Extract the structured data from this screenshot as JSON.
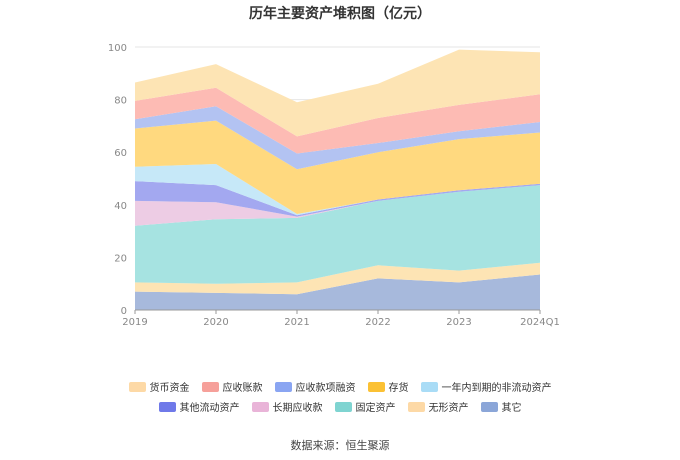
{
  "title": "历年主要资产堆积图（亿元）",
  "source": "数据来源：恒生聚源",
  "chart_data": {
    "type": "area",
    "stacked": true,
    "categories": [
      "2019",
      "2020",
      "2021",
      "2022",
      "2023",
      "2024Q1"
    ],
    "ylim": [
      0,
      100
    ],
    "yticks": [
      0,
      20,
      40,
      60,
      80,
      100
    ],
    "grid": true,
    "legend_position": "bottom",
    "series": [
      {
        "name": "其它",
        "color": "#a7b9dc",
        "values": [
          7,
          6.5,
          6,
          12,
          10.5,
          13.5
        ]
      },
      {
        "name": "无形资产",
        "color": "#fde4b4",
        "values": [
          3.5,
          3.5,
          4.5,
          5,
          4.5,
          4.5
        ]
      },
      {
        "name": "固定资产",
        "color": "#a6e3e1",
        "values": [
          21.5,
          24.5,
          24.5,
          24.5,
          30,
          29.5
        ]
      },
      {
        "name": "长期应收款",
        "color": "#edcce4",
        "values": [
          9.5,
          6.5,
          0.5,
          0,
          0,
          0
        ]
      },
      {
        "name": "其他流动资产",
        "color": "#a3a8f0",
        "values": [
          7.5,
          6.5,
          0.5,
          0.5,
          0.5,
          0.5
        ]
      },
      {
        "name": "一年内到期的非流动资产",
        "color": "#c6e8f8",
        "values": [
          5.5,
          8,
          0.5,
          0,
          0,
          0
        ]
      },
      {
        "name": "存货",
        "color": "#ffd97f",
        "values": [
          14.5,
          16.5,
          17,
          18,
          19.5,
          19.5
        ]
      },
      {
        "name": "应收款项融资",
        "color": "#b3c3f2",
        "values": [
          3.5,
          5.5,
          6,
          3.5,
          3,
          4
        ]
      },
      {
        "name": "应收账款",
        "color": "#fdbbb4",
        "values": [
          7,
          7,
          6.5,
          9.5,
          10,
          10.5
        ]
      },
      {
        "name": "货币资金",
        "color": "#fde4b4",
        "values": [
          7,
          9,
          13,
          13,
          21,
          16
        ]
      }
    ],
    "legend_rows": [
      [
        "货币资金",
        "应收账款",
        "应收款项融资",
        "存货",
        "一年内到期的非流动资产"
      ],
      [
        "其他流动资产",
        "长期应收款",
        "固定资产",
        "无形资产",
        "其它"
      ]
    ],
    "legend_colors": {
      "货币资金": "#fdd9a6",
      "应收账款": "#f6a09a",
      "应收款项融资": "#8aa5f2",
      "存货": "#fbc134",
      "一年内到期的非流动资产": "#a9dcf6",
      "其他流动资产": "#6f79e9",
      "长期应收款": "#e9b4d8",
      "固定资产": "#7fd4d1",
      "无形资产": "#fdd9a6",
      "其它": "#8ba6d8"
    }
  }
}
